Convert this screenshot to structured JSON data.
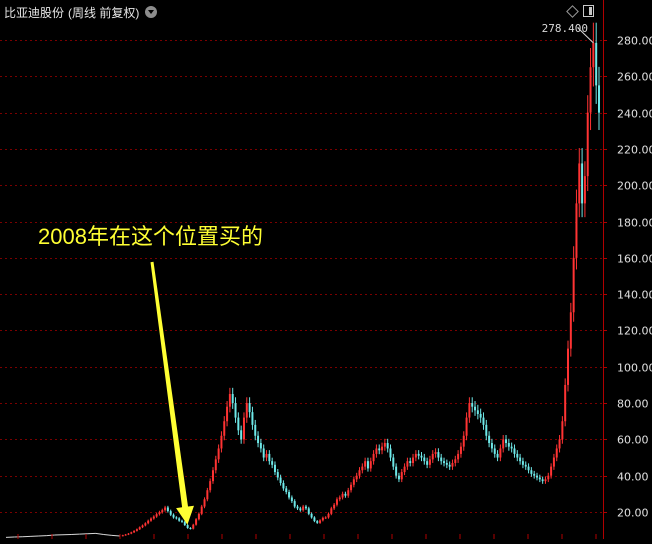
{
  "header": {
    "stock_name": "比亚迪股份",
    "period_info": "(周线 前复权)"
  },
  "annotation": {
    "text": "2008年在这个位置买的"
  },
  "max_price_label": "278.400",
  "colors": {
    "up": "#ff3333",
    "down": "#6ee8e8",
    "grid": "#7a0000",
    "axis": "#b00000",
    "annotation": "#ffff33",
    "flat_line": "#d8d8d8"
  },
  "chart_data": {
    "type": "line",
    "title": "",
    "xlabel": "",
    "ylabel": "",
    "y_ticks": [
      "280.00",
      "260.00",
      "240.00",
      "220.00",
      "200.00",
      "180.00",
      "160.00",
      "140.00",
      "120.00",
      "100.00",
      "80.00",
      "60.00",
      "40.00",
      "20.00"
    ],
    "y_tick_values": [
      280,
      260,
      240,
      220,
      200,
      180,
      160,
      140,
      120,
      100,
      80,
      60,
      40,
      20
    ],
    "ylim": [
      4,
      284
    ],
    "grid": true,
    "series": [
      {
        "values": [
          6,
          6.2,
          6.4,
          6.6,
          6.8,
          7,
          7.3,
          7.5,
          7.6,
          7.8,
          8,
          8.2,
          7.6,
          7.1,
          6.8,
          7.2,
          7.6,
          8.1,
          8.8,
          9.6,
          10.5,
          11.6,
          12.6,
          13.8,
          15.2,
          16.4,
          17.5,
          18.8,
          19.9,
          21,
          22.5,
          20.5,
          18.5,
          17,
          16.5,
          15.2,
          14.6,
          12.8,
          11.2,
          10.8,
          13,
          16,
          19,
          23,
          27,
          32,
          37,
          43,
          49,
          55,
          62,
          70,
          78,
          85,
          80,
          72,
          65,
          60,
          72,
          80,
          75,
          68,
          62,
          58,
          55,
          50,
          52,
          48,
          46,
          42,
          39,
          36,
          33,
          31,
          28,
          26,
          23,
          22,
          21,
          23,
          22,
          19,
          17,
          15,
          14,
          15.4,
          16.8,
          17,
          19,
          22,
          24,
          27,
          28,
          30,
          29,
          32,
          35,
          38,
          40,
          43,
          45,
          48,
          44,
          48,
          52,
          55,
          54,
          56,
          58,
          55,
          50,
          45,
          40,
          38,
          42,
          45,
          48,
          47,
          50,
          52,
          51,
          50,
          48,
          46,
          49,
          52,
          53,
          50,
          48,
          47,
          46,
          45,
          47,
          49,
          52,
          56,
          62,
          72,
          80,
          78,
          76,
          74,
          72,
          68,
          62,
          58,
          55,
          52,
          50,
          55,
          60,
          58,
          56,
          55,
          52,
          50,
          48,
          46,
          45,
          43,
          41,
          40,
          39,
          38,
          37,
          38,
          40,
          45,
          50,
          55,
          60,
          70,
          90,
          110,
          130,
          160,
          190,
          212,
          190,
          205,
          240,
          265,
          278.4,
          255,
          240
        ]
      }
    ]
  }
}
